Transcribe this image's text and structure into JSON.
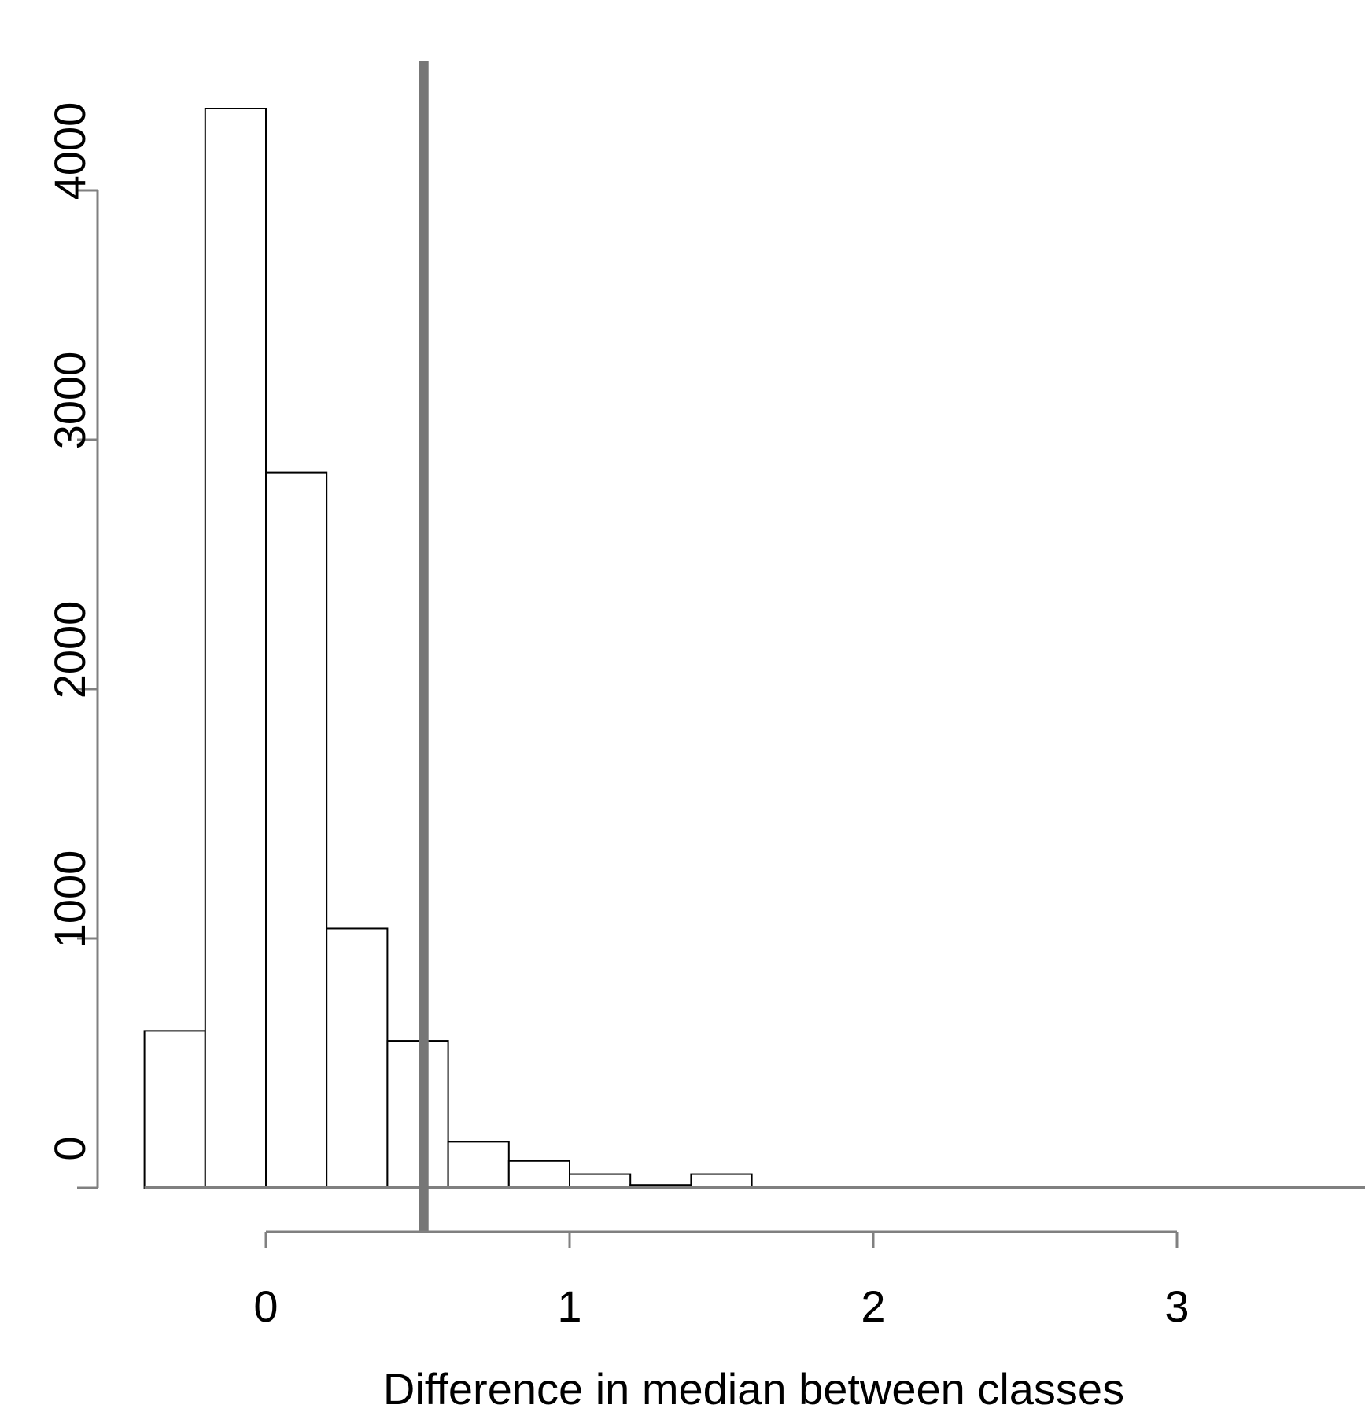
{
  "chart_data": {
    "type": "bar",
    "histogram": true,
    "xlabel": "Difference in median between classes",
    "ylabel": "",
    "bin_edges": [
      -0.4,
      -0.2,
      0.0,
      0.2,
      0.4,
      0.6,
      0.8,
      1.0,
      1.2,
      1.4,
      1.6,
      1.8,
      2.0,
      2.2,
      2.4,
      2.6,
      2.8,
      3.0,
      3.2,
      3.4,
      3.6
    ],
    "values": [
      630,
      4330,
      2870,
      1040,
      590,
      185,
      108,
      55,
      12,
      55,
      5,
      3,
      3,
      2,
      2,
      2,
      2,
      2,
      2,
      2
    ],
    "reference_line": {
      "x": 0.52,
      "color": "#777777"
    },
    "x_ticks": [
      "0",
      "1",
      "2",
      "3"
    ],
    "y_ticks": [
      "0",
      "1000",
      "2000",
      "3000",
      "4000"
    ],
    "xlim": [
      -0.4,
      3.6
    ],
    "ylim": [
      0,
      4330
    ],
    "grid": false,
    "colors": {
      "bar_fill": "#ffffff",
      "bar_stroke": "#000000",
      "axis": "#808080"
    }
  }
}
